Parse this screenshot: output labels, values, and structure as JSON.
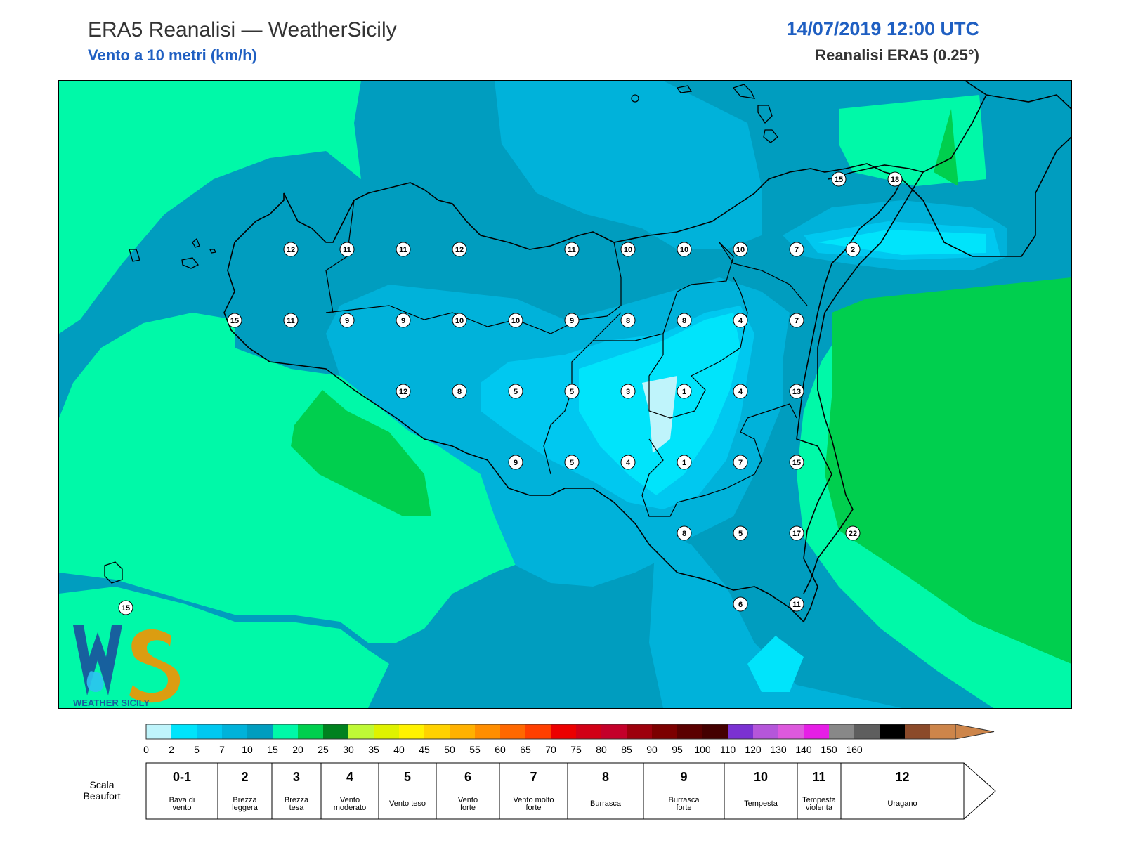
{
  "header": {
    "title": "ERA5 Reanalisi — WeatherSicily",
    "subtitle": "Vento a 10 metri (km/h)",
    "datetime": "14/07/2019 12:00 UTC",
    "model": "Reanalisi ERA5 (0.25°)"
  },
  "logo": {
    "text": "WEATHER SICILY"
  },
  "map_data": {
    "type": "wind-speed-contour-map",
    "region": "Sicilia",
    "unit": "km/h",
    "stations": [
      {
        "label": "12",
        "col": 0,
        "row": 0
      },
      {
        "label": "11",
        "col": 1,
        "row": 0
      },
      {
        "label": "11",
        "col": 2,
        "row": 0
      },
      {
        "label": "12",
        "col": 3,
        "row": 0
      },
      {
        "label": "11",
        "col": 5,
        "row": 0
      },
      {
        "label": "10",
        "col": 6,
        "row": 0
      },
      {
        "label": "10",
        "col": 7,
        "row": 0
      },
      {
        "label": "10",
        "col": 8,
        "row": 0
      },
      {
        "label": "7",
        "col": 9,
        "row": 0
      },
      {
        "label": "2",
        "col": 10,
        "row": 0
      },
      {
        "label": "15",
        "col": -1,
        "row": 1
      },
      {
        "label": "11",
        "col": 0,
        "row": 1
      },
      {
        "label": "9",
        "col": 1,
        "row": 1
      },
      {
        "label": "9",
        "col": 2,
        "row": 1
      },
      {
        "label": "10",
        "col": 3,
        "row": 1
      },
      {
        "label": "10",
        "col": 4,
        "row": 1
      },
      {
        "label": "9",
        "col": 5,
        "row": 1
      },
      {
        "label": "8",
        "col": 6,
        "row": 1
      },
      {
        "label": "8",
        "col": 7,
        "row": 1
      },
      {
        "label": "4",
        "col": 8,
        "row": 1
      },
      {
        "label": "7",
        "col": 9,
        "row": 1
      },
      {
        "label": "12",
        "col": 2,
        "row": 2
      },
      {
        "label": "8",
        "col": 3,
        "row": 2
      },
      {
        "label": "5",
        "col": 4,
        "row": 2
      },
      {
        "label": "5",
        "col": 5,
        "row": 2
      },
      {
        "label": "3",
        "col": 6,
        "row": 2
      },
      {
        "label": "1",
        "col": 7,
        "row": 2
      },
      {
        "label": "4",
        "col": 8,
        "row": 2
      },
      {
        "label": "13",
        "col": 9,
        "row": 2
      },
      {
        "label": "9",
        "col": 4,
        "row": 3
      },
      {
        "label": "5",
        "col": 5,
        "row": 3
      },
      {
        "label": "4",
        "col": 6,
        "row": 3
      },
      {
        "label": "1",
        "col": 7,
        "row": 3
      },
      {
        "label": "7",
        "col": 8,
        "row": 3
      },
      {
        "label": "15",
        "col": 9,
        "row": 3
      },
      {
        "label": "8",
        "col": 7,
        "row": 4
      },
      {
        "label": "5",
        "col": 8,
        "row": 4
      },
      {
        "label": "17",
        "col": 9,
        "row": 4
      },
      {
        "label": "22",
        "col": 10,
        "row": 4
      },
      {
        "label": "6",
        "col": 8,
        "row": 5
      },
      {
        "label": "11",
        "col": 9,
        "row": 5
      },
      {
        "label": "15",
        "col": 10,
        "row": -1
      },
      {
        "label": "18",
        "col": 11,
        "row": -1
      },
      {
        "label": "15",
        "col": -2,
        "row": 4
      }
    ]
  },
  "colorbar": {
    "colors": [
      "#bff4fb",
      "#00e4fb",
      "#00c8f0",
      "#00b2da",
      "#009dbf",
      "#00f9a8",
      "#00cf4e",
      "#00811f",
      "#bff936",
      "#dff200",
      "#fff200",
      "#ffd200",
      "#ffb100",
      "#ff8e00",
      "#ff6800",
      "#ff3f00",
      "#ec0000",
      "#d20016",
      "#c4002a",
      "#9d000c",
      "#7c0000",
      "#5b0000",
      "#440000",
      "#7b32d2",
      "#b556da",
      "#dd59dd",
      "#e61ee6",
      "#888888",
      "#5e5e5e",
      "#000000",
      "#8b4a2a",
      "#cd854a"
    ],
    "ticks": [
      "0",
      "2",
      "5",
      "7",
      "10",
      "15",
      "20",
      "25",
      "30",
      "35",
      "40",
      "45",
      "50",
      "55",
      "60",
      "65",
      "70",
      "75",
      "80",
      "85",
      "90",
      "95",
      "100",
      "110",
      "120",
      "130",
      "140",
      "150",
      "160"
    ]
  },
  "beaufort": {
    "label_line1": "Scala",
    "label_line2": "Beaufort",
    "cells": [
      {
        "num": "0-1",
        "desc": [
          "Bava di",
          "vento"
        ]
      },
      {
        "num": "2",
        "desc": [
          "Brezza",
          "leggera"
        ]
      },
      {
        "num": "3",
        "desc": [
          "Brezza",
          "tesa"
        ]
      },
      {
        "num": "4",
        "desc": [
          "Vento",
          "moderato"
        ]
      },
      {
        "num": "5",
        "desc": [
          "Vento teso"
        ]
      },
      {
        "num": "6",
        "desc": [
          "Vento",
          "forte"
        ]
      },
      {
        "num": "7",
        "desc": [
          "Vento molto",
          "forte"
        ]
      },
      {
        "num": "8",
        "desc": [
          "Burrasca"
        ]
      },
      {
        "num": "9",
        "desc": [
          "Burrasca",
          "forte"
        ]
      },
      {
        "num": "10",
        "desc": [
          "Tempesta"
        ]
      },
      {
        "num": "11",
        "desc": [
          "Tempesta",
          "violenta"
        ]
      },
      {
        "num": "12",
        "desc": [
          "Uragano"
        ]
      }
    ]
  }
}
